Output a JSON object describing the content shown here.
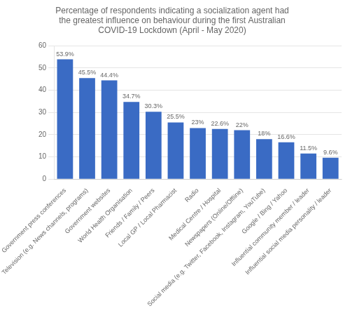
{
  "chart_data": {
    "type": "bar",
    "title": "Percentage of respondents indicating a socialization agent had\nthe greatest influence on behaviour during the first Australian\nCOVID-19 Lockdown (April - May 2020)",
    "categories": [
      "Government press conferences",
      "Television (e.g. News channels, programs)",
      "Government websites",
      "World Health Organisation",
      "Friends / Family / Peers",
      "Local GP / Local Pharmacist",
      "Radio",
      "Medical Centre / Hospital",
      "Newspapers (Online/Offline)",
      "Social media (e.g. Twitter, Facebook, Instagram, YouTube)",
      "Google / Bing / Yahoo",
      "Influential community member / leader",
      "Influential social media personality / leader"
    ],
    "values": [
      53.9,
      45.5,
      44.4,
      34.7,
      30.3,
      25.5,
      23.0,
      22.6,
      22.0,
      18.0,
      16.6,
      11.5,
      9.6
    ],
    "value_labels": [
      "53.9%",
      "45.5%",
      "44.4%",
      "34.7%",
      "30.3%",
      "25.5%",
      "23%",
      "22.6%",
      "22%",
      "18%",
      "16.6%",
      "11.5%",
      "9.6%"
    ],
    "data_labels": true,
    "color": "#3A6BC4",
    "ylim": [
      0,
      60
    ],
    "yticks": [
      0,
      10,
      20,
      30,
      40,
      50,
      60
    ],
    "grid": true
  }
}
